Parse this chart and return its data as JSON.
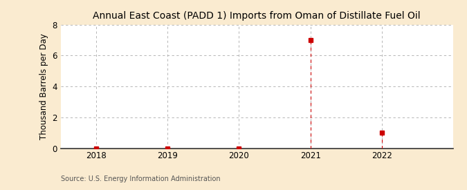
{
  "title": "Annual East Coast (PADD 1) Imports from Oman of Distillate Fuel Oil",
  "ylabel": "Thousand Barrels per Day",
  "source": "Source: U.S. Energy Information Administration",
  "x_values": [
    2018,
    2019,
    2020,
    2021,
    2022
  ],
  "y_values": [
    0,
    0,
    0,
    7,
    1
  ],
  "marker_color": "#cc0000",
  "marker_style": "s",
  "marker_size": 4,
  "line_color": "#cc0000",
  "grid_color": "#aaaaaa",
  "bg_color": "#faebd0",
  "plot_bg_color": "#ffffff",
  "xlim": [
    2017.5,
    2023.0
  ],
  "ylim": [
    0,
    8
  ],
  "yticks": [
    0,
    2,
    4,
    6,
    8
  ],
  "xticks": [
    2018,
    2019,
    2020,
    2021,
    2022
  ],
  "title_fontsize": 10,
  "label_fontsize": 8.5,
  "tick_fontsize": 8.5,
  "source_fontsize": 7
}
